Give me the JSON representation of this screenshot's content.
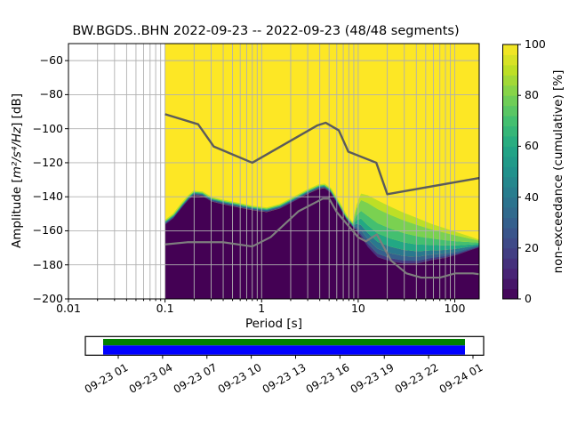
{
  "title": "BW.BGDS..BHN   2022-09-23 -- 2022-09-23  (48/48 segments)",
  "x_axis": {
    "label": "Period [s]",
    "tick_labels": [
      "0.01",
      "0.1",
      "1",
      "10",
      "100"
    ],
    "tick_values": [
      0.01,
      0.1,
      1,
      10,
      100
    ]
  },
  "y_axis": {
    "label_prefix": "Amplitude [",
    "label_math": "m²/s⁴/Hz",
    "label_suffix": "] [dB]",
    "tick_labels": [
      "−60",
      "−80",
      "−100",
      "−120",
      "−140",
      "−160",
      "−180",
      "−200"
    ],
    "tick_values": [
      -60,
      -80,
      -100,
      -120,
      -140,
      -160,
      -180,
      -200
    ]
  },
  "colorbar": {
    "label": "non-exceedance (cumulative) [%]",
    "tick_labels": [
      "0",
      "20",
      "40",
      "60",
      "80",
      "100"
    ],
    "tick_values": [
      0,
      20,
      40,
      60,
      80,
      100
    ],
    "n_steps": 25
  },
  "timeline": {
    "tick_labels": [
      "09-23 01",
      "09-23 04",
      "09-23 07",
      "09-23 10",
      "09-23 13",
      "09-23 16",
      "09-23 19",
      "09-23 22",
      "09-24 01"
    ],
    "data_bar_color": "#008000",
    "processed_bar_color": "#0000ff"
  },
  "chart_data": {
    "type": "heatmap",
    "subtype": "ppsd-cumulative",
    "title": "BW.BGDS..BHN   2022-09-23 -- 2022-09-23  (48/48 segments)",
    "xlabel": "Period [s]",
    "ylabel": "Amplitude [m²/s⁴/Hz] [dB]",
    "xscale": "log",
    "xlim": [
      0.01,
      179
    ],
    "ylim": [
      -200,
      -50
    ],
    "grid": true,
    "grid_color": "#b0b0b0",
    "colormap": "viridis",
    "max_color": "#fde725",
    "min_color": "#440154",
    "data_period_range": [
      0.1,
      179
    ],
    "boundary": [
      [
        0.1,
        -156.3
      ],
      [
        0.122,
        -152.6
      ],
      [
        0.151,
        -145.9
      ],
      [
        0.175,
        -141.7
      ],
      [
        0.198,
        -139.1
      ],
      [
        0.245,
        -139.6
      ],
      [
        0.304,
        -142.8
      ],
      [
        0.39,
        -144.3
      ],
      [
        0.536,
        -145.9
      ],
      [
        0.822,
        -148.0
      ],
      [
        1.13,
        -149.0
      ],
      [
        1.55,
        -146.9
      ],
      [
        2.13,
        -142.8
      ],
      [
        2.93,
        -138.6
      ],
      [
        3.86,
        -135.5
      ],
      [
        4.48,
        -135.0
      ],
      [
        5.2,
        -137.6
      ],
      [
        6.15,
        -144.3
      ],
      [
        7.62,
        -153.7
      ],
      [
        8.6,
        -157.0
      ],
      [
        9.6,
        -160.0
      ],
      [
        10.7,
        -163.5
      ],
      [
        12.6,
        -169.5
      ],
      [
        15.9,
        -175.5
      ],
      [
        21.7,
        -178.0
      ],
      [
        29.9,
        -179.3
      ],
      [
        41.1,
        -179.2
      ],
      [
        56.4,
        -177.3
      ],
      [
        78,
        -176.0
      ],
      [
        107,
        -174.0
      ],
      [
        138,
        -171.8
      ],
      [
        178,
        -169.7
      ]
    ],
    "spread": [
      [
        8.6,
        -157.0,
        -157.0
      ],
      [
        9.6,
        -144.8,
        -160.0
      ],
      [
        10.7,
        -138.1,
        -163.5
      ],
      [
        12.6,
        -139.1,
        -169.5
      ],
      [
        15.9,
        -142.2,
        -175.5
      ],
      [
        21.7,
        -145.9,
        -178.0
      ],
      [
        29.9,
        -149.5,
        -179.3
      ],
      [
        41.1,
        -152.6,
        -179.2
      ],
      [
        56.4,
        -155.8,
        -177.3
      ],
      [
        78,
        -158.4,
        -176.0
      ],
      [
        107,
        -161.0,
        -174.0
      ],
      [
        138,
        -163.0,
        -171.8
      ],
      [
        178,
        -165.1,
        -169.7
      ]
    ],
    "bands": [
      [
        0.0,
        0.06,
        "#453781"
      ],
      [
        0.06,
        0.15,
        "#35608d"
      ],
      [
        0.15,
        0.27,
        "#2a788e"
      ],
      [
        0.27,
        0.42,
        "#22a884"
      ],
      [
        0.42,
        0.6,
        "#44bf70"
      ],
      [
        0.6,
        0.85,
        "#7ad151"
      ],
      [
        0.85,
        1.0,
        "#bddf26"
      ]
    ],
    "edge_strokes": [
      {
        "offset": -0.9,
        "color": "#414487",
        "width": 1.5
      },
      {
        "offset": -2.1,
        "color": "#2a788e",
        "width": 1.5
      },
      {
        "offset": -3.3,
        "color": "#44bf70",
        "width": 1.6
      },
      {
        "offset": -4.5,
        "color": "#bddf26",
        "width": 1.4
      }
    ],
    "nhnm": [
      [
        0.1,
        -91.5
      ],
      [
        0.22,
        -97.4
      ],
      [
        0.32,
        -110.5
      ],
      [
        0.8,
        -120.0
      ],
      [
        3.8,
        -98.0
      ],
      [
        4.6,
        -96.5
      ],
      [
        6.3,
        -101.0
      ],
      [
        7.9,
        -113.5
      ],
      [
        15.4,
        -120.0
      ],
      [
        20,
        -138.5
      ],
      [
        354.8,
        -126.0
      ]
    ],
    "nlnm": [
      [
        0.1,
        -168.0
      ],
      [
        0.17,
        -166.7
      ],
      [
        0.4,
        -166.7
      ],
      [
        0.8,
        -169.2
      ],
      [
        1.24,
        -163.7
      ],
      [
        2.4,
        -148.6
      ],
      [
        4.3,
        -141.1
      ],
      [
        5.0,
        -141.1
      ],
      [
        6.0,
        -149.0
      ],
      [
        10.0,
        -163.8
      ],
      [
        12.0,
        -166.2
      ],
      [
        15.6,
        -162.1
      ],
      [
        21.9,
        -177.5
      ],
      [
        31.6,
        -185.0
      ],
      [
        45.0,
        -187.5
      ],
      [
        70.0,
        -187.5
      ],
      [
        101.0,
        -185.0
      ],
      [
        154.0,
        -185.0
      ],
      [
        328.0,
        -187.5
      ]
    ],
    "noise_model_colors": {
      "nhnm": "#5b5b5b",
      "nlnm": "#7e7e7e"
    },
    "viridis_stops": [
      "#440154",
      "#482475",
      "#414487",
      "#35608d",
      "#2a788e",
      "#21918c",
      "#22a884",
      "#44bf70",
      "#7ad151",
      "#bddf26",
      "#fde725"
    ]
  }
}
